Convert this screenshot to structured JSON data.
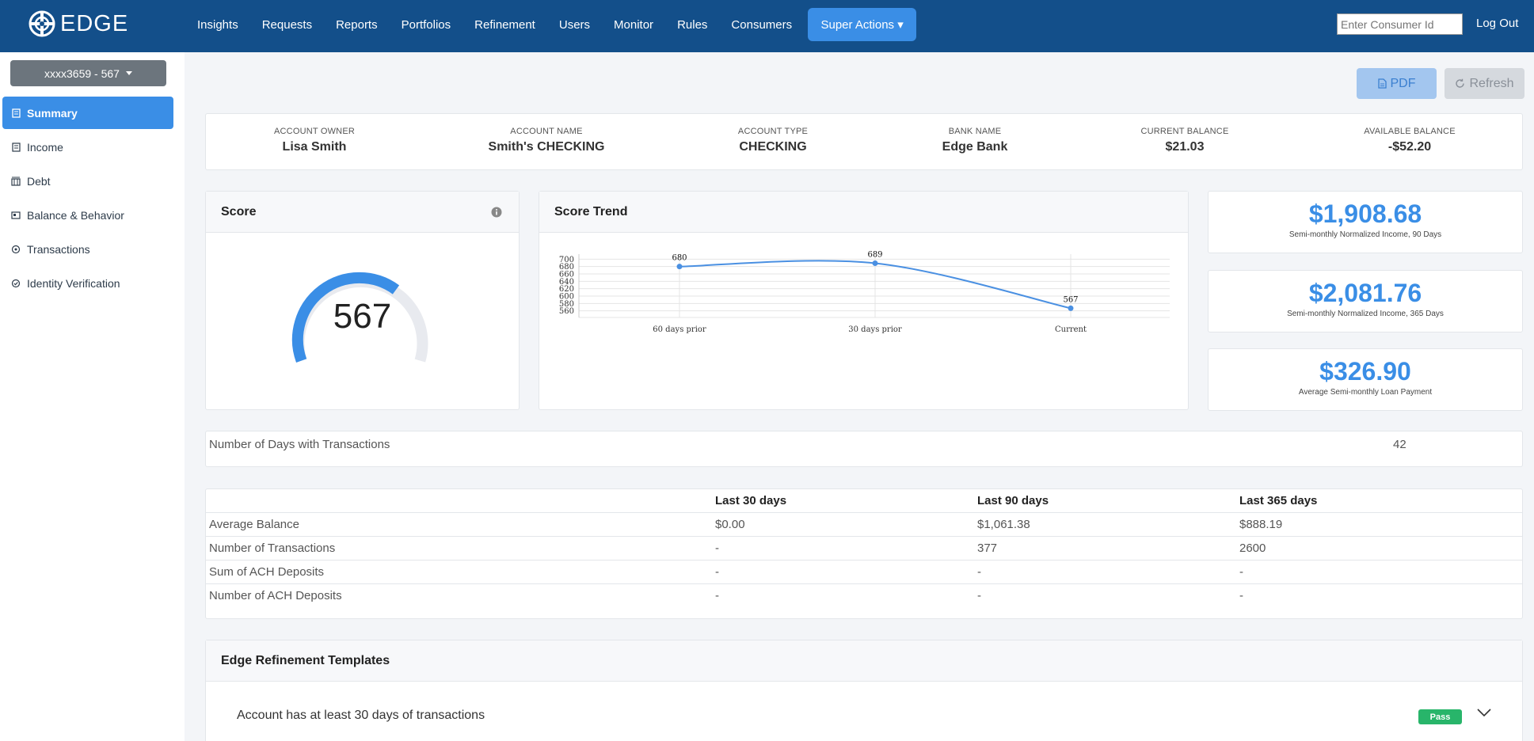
{
  "nav": {
    "brand": "EDGE",
    "items": [
      {
        "label": "Insights"
      },
      {
        "label": "Requests"
      },
      {
        "label": "Reports"
      },
      {
        "label": "Portfolios"
      },
      {
        "label": "Refinement"
      },
      {
        "label": "Users"
      },
      {
        "label": "Monitor"
      },
      {
        "label": "Rules"
      },
      {
        "label": "Consumers"
      }
    ],
    "super_actions": "Super Actions ▾",
    "consumer_placeholder": "Enter Consumer Id",
    "logout": "Log Out"
  },
  "sidebar": {
    "account_selector": "xxxx3659 - 567",
    "items": [
      {
        "label": "Summary",
        "icon": "summary-icon",
        "active": true
      },
      {
        "label": "Income",
        "icon": "income-icon"
      },
      {
        "label": "Debt",
        "icon": "debt-icon"
      },
      {
        "label": "Balance & Behavior",
        "icon": "balance-icon"
      },
      {
        "label": "Transactions",
        "icon": "transactions-icon"
      },
      {
        "label": "Identity Verification",
        "icon": "identity-icon"
      }
    ]
  },
  "actions": {
    "pdf": "PDF",
    "refresh": "Refresh"
  },
  "account": {
    "fields": [
      {
        "label": "ACCOUNT OWNER",
        "value": "Lisa Smith"
      },
      {
        "label": "ACCOUNT NAME",
        "value": "Smith's CHECKING"
      },
      {
        "label": "ACCOUNT TYPE",
        "value": "CHECKING"
      },
      {
        "label": "BANK NAME",
        "value": "Edge Bank"
      },
      {
        "label": "CURRENT BALANCE",
        "value": "$21.03"
      },
      {
        "label": "AVAILABLE BALANCE",
        "value": "-$52.20"
      }
    ]
  },
  "score": {
    "title": "Score",
    "value": "567"
  },
  "trend": {
    "title": "Score Trend"
  },
  "chart_data": {
    "type": "line",
    "categories": [
      "60 days prior",
      "30 days prior",
      "Current"
    ],
    "values": [
      680,
      689,
      567
    ],
    "data_labels": [
      "680",
      "689",
      "567"
    ],
    "y_ticks": [
      "700",
      "680",
      "660",
      "640",
      "620",
      "600",
      "580",
      "560"
    ],
    "ylim": [
      555,
      705
    ],
    "grid": true,
    "color": "#4a90e2"
  },
  "stats": [
    {
      "value": "$1,908.68",
      "label": "Semi-monthly Normalized Income, 90 Days"
    },
    {
      "value": "$2,081.76",
      "label": "Semi-monthly Normalized Income, 365 Days"
    },
    {
      "value": "$326.90",
      "label": "Average Semi-monthly Loan Payment"
    }
  ],
  "days": {
    "label": "Number of Days with Transactions",
    "value": "42"
  },
  "summary_table": {
    "headers": [
      "Last 30 days",
      "Last 90 days",
      "Last 365 days"
    ],
    "rows": [
      {
        "label": "Average Balance",
        "values": [
          "$0.00",
          "$1,061.38",
          "$888.19"
        ]
      },
      {
        "label": "Number of Transactions",
        "values": [
          "-",
          "377",
          "2600"
        ]
      },
      {
        "label": "Sum of ACH Deposits",
        "values": [
          "-",
          "-",
          "-"
        ]
      },
      {
        "label": "Number of ACH Deposits",
        "values": [
          "-",
          "-",
          "-"
        ]
      }
    ]
  },
  "templates": {
    "title": "Edge Refinement Templates",
    "items": [
      {
        "text": "Account has at least 30 days of transactions",
        "status": "Pass"
      }
    ]
  }
}
